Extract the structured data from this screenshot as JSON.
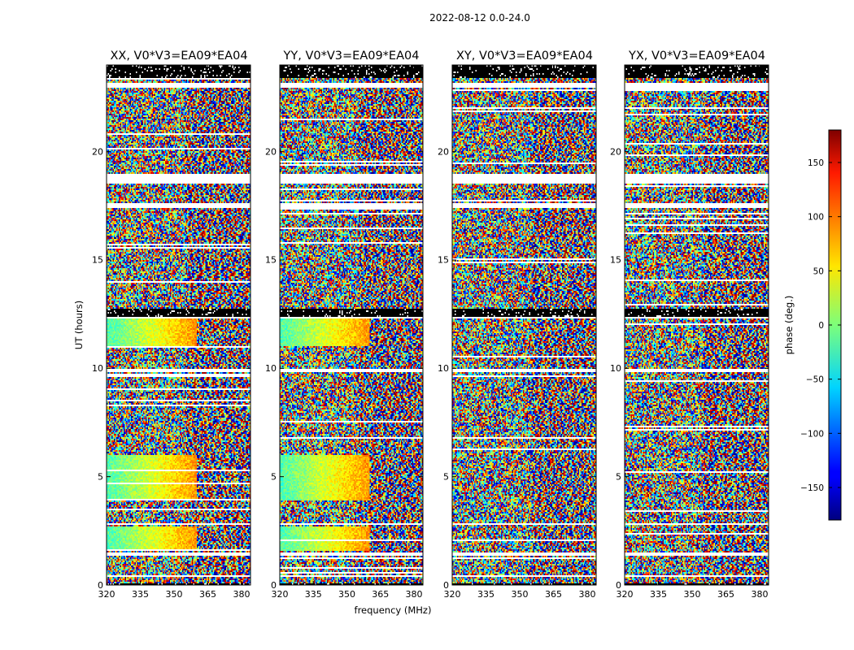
{
  "chart_data": {
    "type": "heatmap",
    "title": "2022-08-12 0.0-24.0",
    "xlabel": "frequency (MHz)",
    "ylabel": "UT (hours)",
    "xlim": [
      320,
      384
    ],
    "ylim": [
      0,
      24
    ],
    "xticks": [
      "320",
      "335",
      "350",
      "365",
      "380"
    ],
    "yticks": [
      "0",
      "5",
      "10",
      "15",
      "20"
    ],
    "panels": [
      {
        "title": "XX, V0*V3=EA09*EA04",
        "pol": "XX",
        "smooth_band": true
      },
      {
        "title": "YY, V0*V3=EA09*EA04",
        "pol": "YY",
        "smooth_band": true
      },
      {
        "title": "XY, V0*V3=EA09*EA04",
        "pol": "XY",
        "smooth_band": false
      },
      {
        "title": "YX, V0*V3=EA09*EA04",
        "pol": "YX",
        "smooth_band": false
      }
    ],
    "colorbar": {
      "label": "phase (deg.)",
      "range": [
        -180,
        180
      ],
      "ticks": [
        "150",
        "100",
        "50",
        "0",
        "−50",
        "−100",
        "−150"
      ],
      "tick_values": [
        150,
        100,
        50,
        0,
        -50,
        -100,
        -150
      ],
      "colormap": "jet"
    },
    "blank_ut_ranges": [
      [
        0.35,
        0.45
      ],
      [
        1.35,
        1.5
      ],
      [
        2.75,
        2.85
      ],
      [
        9.8,
        10.0
      ],
      [
        12.3,
        12.4
      ],
      [
        17.4,
        17.6
      ],
      [
        18.5,
        19.0
      ],
      [
        22.95,
        23.2
      ]
    ],
    "flagged_ut_ranges": [
      [
        0.0,
        0.05
      ],
      [
        12.4,
        12.75
      ],
      [
        23.4,
        24.0
      ]
    ]
  }
}
